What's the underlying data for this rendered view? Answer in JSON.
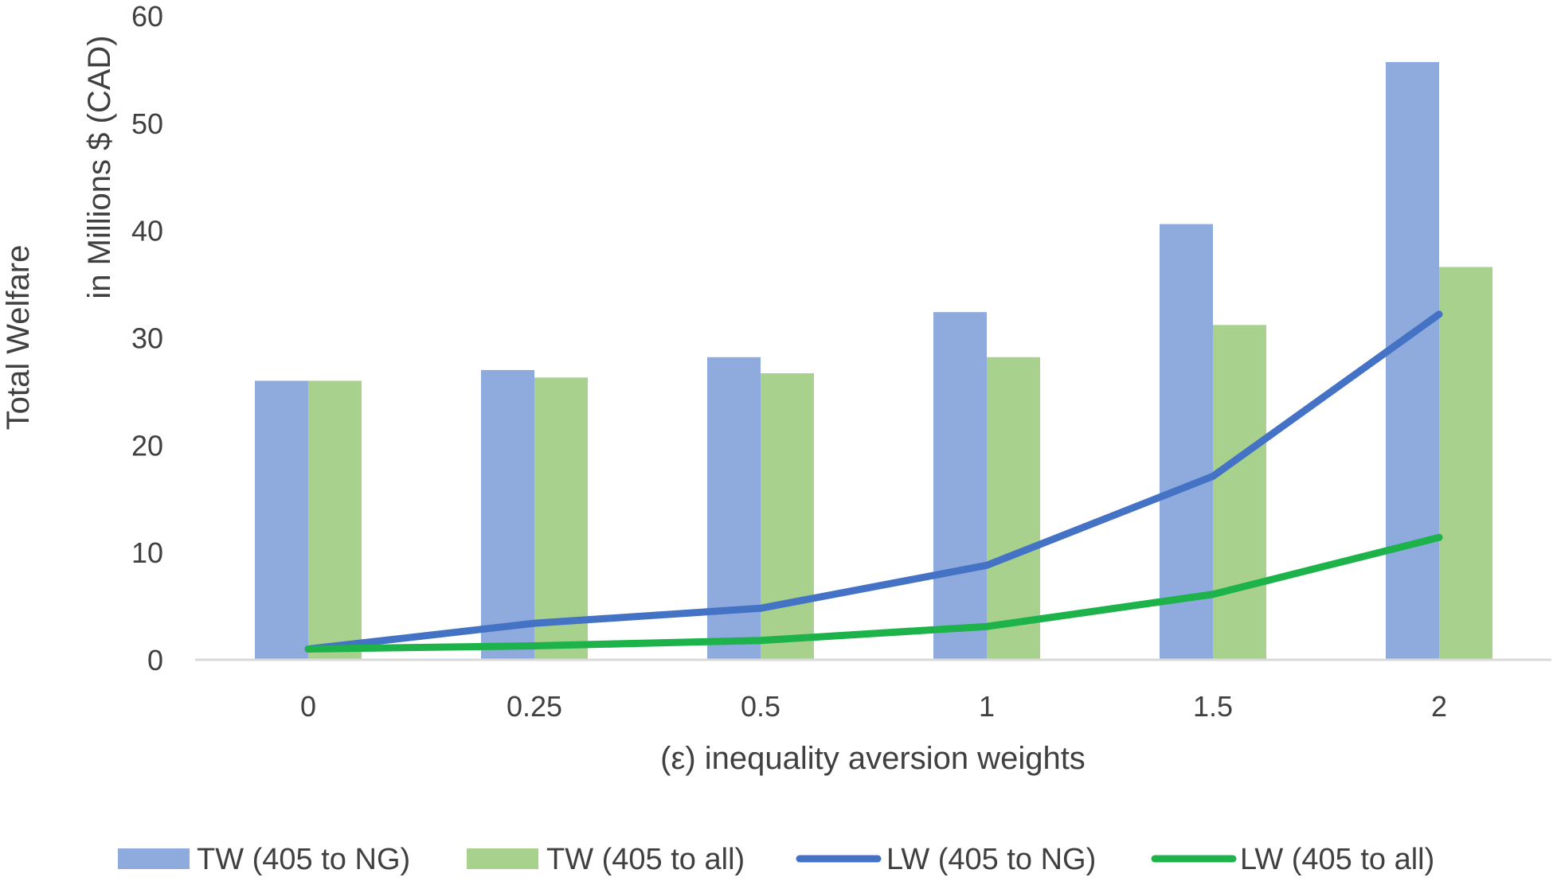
{
  "chart_data": {
    "type": "bar",
    "title": "",
    "ylabel_line1": "Total Welfare",
    "ylabel_line2": "in Millions $ (CAD)",
    "xlabel": "(ε) inequality aversion weights",
    "categories": [
      "0",
      "0.25",
      "0.5",
      "1",
      "1.5",
      "2"
    ],
    "ylim": [
      0,
      60
    ],
    "yticks": [
      "0",
      "10",
      "20",
      "30",
      "40",
      "50",
      "60"
    ],
    "grid": false,
    "legend_position": "bottom",
    "series": [
      {
        "name": "TW (405 to NG)",
        "kind": "bar",
        "color": "#8faadc",
        "values": [
          26,
          27,
          28.2,
          32.4,
          40.6,
          55.7
        ]
      },
      {
        "name": "TW (405 to all)",
        "kind": "bar",
        "color": "#a9d18e",
        "values": [
          26,
          26.3,
          26.7,
          28.2,
          31.2,
          36.6
        ]
      },
      {
        "name": "LW (405 to NG)",
        "kind": "line",
        "color": "#4472c4",
        "values": [
          1,
          3.4,
          4.8,
          8.8,
          17.1,
          32.2
        ]
      },
      {
        "name": "LW (405 to all)",
        "kind": "line",
        "color": "#1db34a",
        "values": [
          1,
          1.3,
          1.8,
          3.1,
          6.1,
          11.4
        ]
      }
    ]
  }
}
